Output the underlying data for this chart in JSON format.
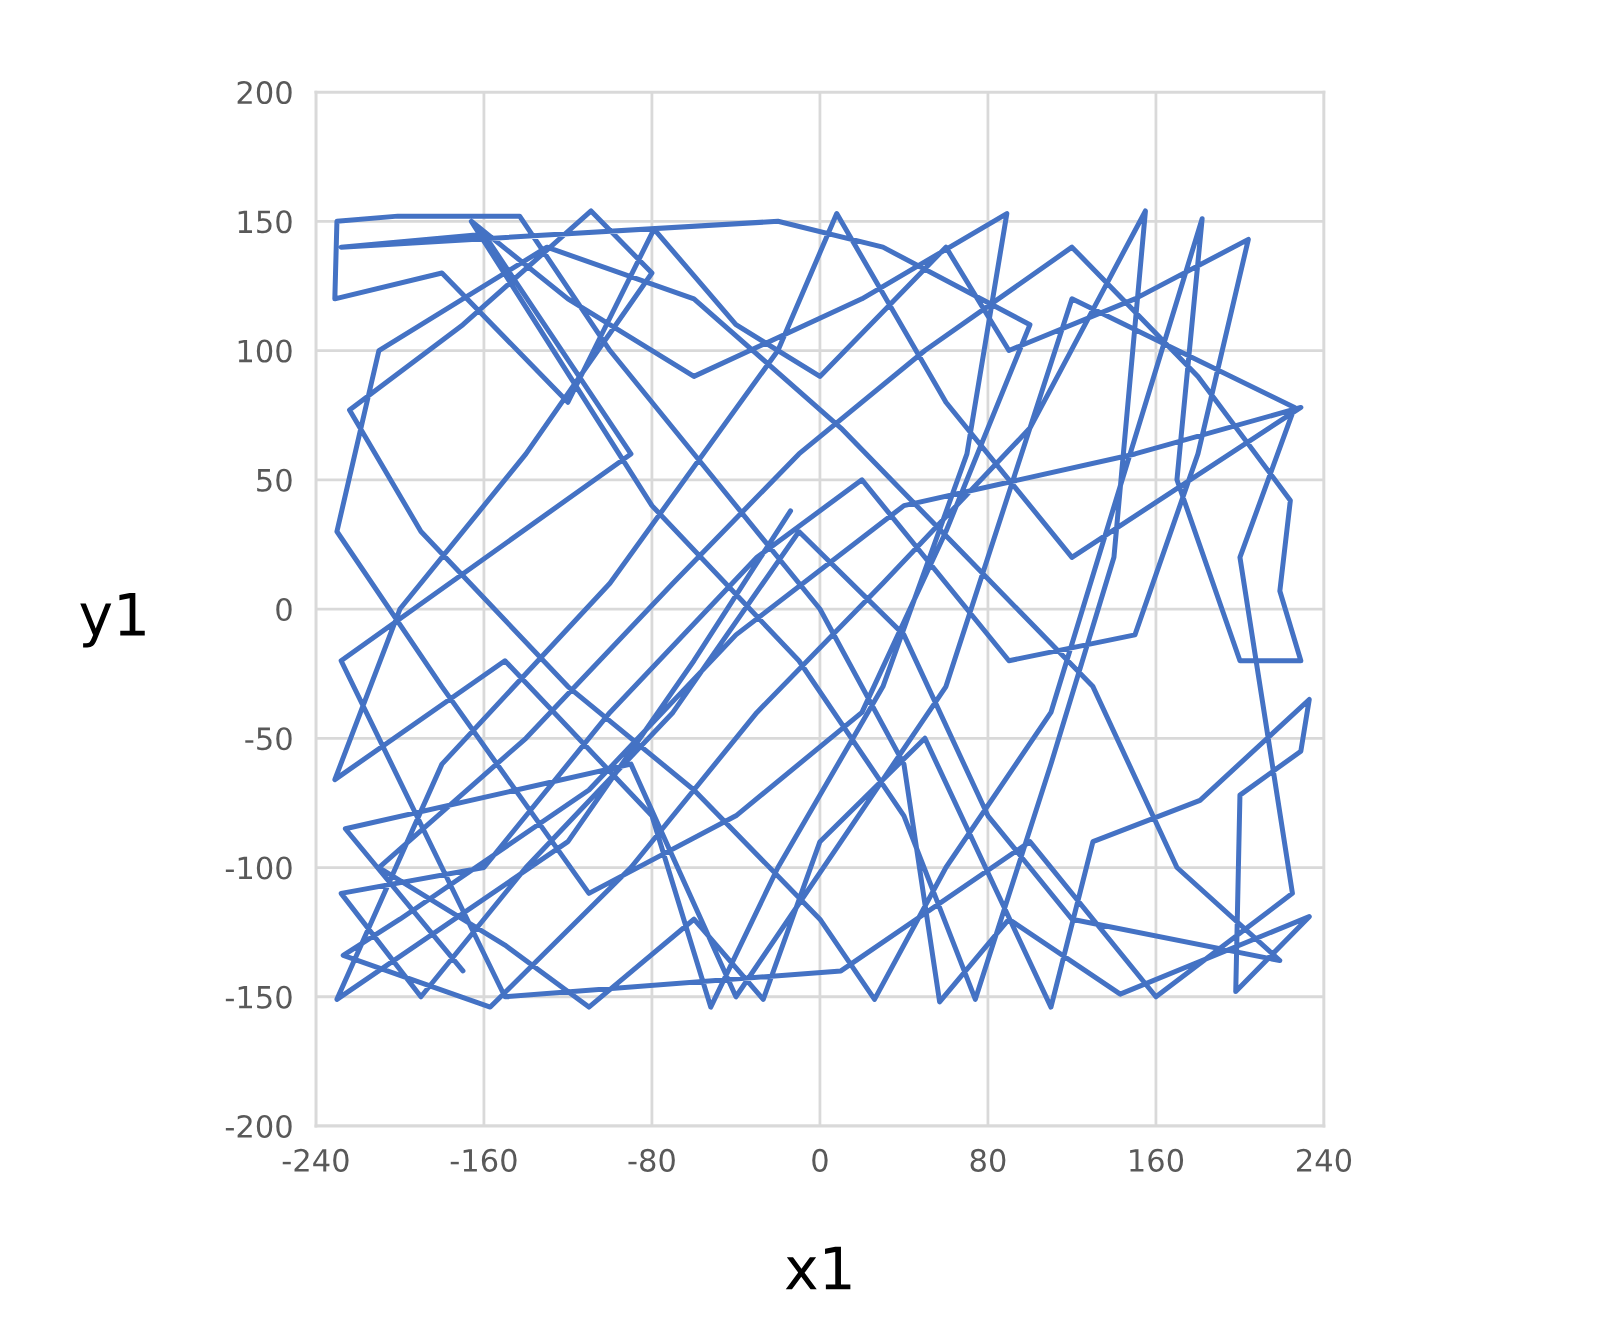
{
  "chart_data": {
    "type": "line",
    "xlabel": "x1",
    "ylabel": "y1",
    "x": [
      -14,
      -60,
      -120,
      -230,
      -180,
      -100,
      -20,
      8,
      60,
      120,
      229,
      150,
      40,
      -40,
      -110,
      -200,
      -227,
      -157,
      -90,
      -30,
      30,
      100,
      155,
      140,
      110,
      74,
      40,
      -10,
      -80,
      -166,
      -120,
      -60,
      20,
      89,
      70,
      30,
      -20,
      -52,
      -80,
      -150,
      -231,
      -200,
      -140,
      -80,
      -109,
      -170,
      -224,
      -190,
      -120,
      -60,
      0,
      26,
      60,
      110,
      182,
      170,
      200,
      229,
      219,
      224,
      180,
      120,
      50,
      -10,
      -70,
      -140,
      -210,
      -150,
      -110,
      -60,
      -27,
      0,
      50,
      110,
      130,
      181,
      233,
      229,
      200,
      198,
      233,
      143,
      90,
      57,
      40,
      0,
      -50,
      -100,
      -143,
      -201,
      -230,
      -231,
      -180,
      -120,
      -79,
      -40,
      0,
      60,
      90,
      150,
      204,
      180,
      150,
      90,
      20,
      -30,
      -100,
      -160,
      -228,
      -190,
      -140,
      -70,
      -10,
      40,
      80,
      120,
      219,
      170,
      130,
      70,
      10,
      -60,
      -130,
      -210,
      -230,
      -180,
      -110,
      -40,
      20,
      60,
      100,
      30,
      -20,
      -228,
      -160,
      -90,
      -228,
      -150,
      10,
      100,
      160,
      225,
      200,
      226,
      120,
      60,
      -40,
      -90,
      -226,
      -170
    ],
    "series": [
      {
        "color": "#4472c4",
        "values": [
          38,
          -20,
          -90,
          -151,
          -60,
          10,
          100,
          153,
          80,
          20,
          78,
          60,
          40,
          -10,
          -70,
          -120,
          -134,
          -154,
          -100,
          -40,
          10,
          70,
          154,
          20,
          -60,
          -151,
          -80,
          -20,
          40,
          150,
          120,
          90,
          120,
          153,
          60,
          -30,
          -100,
          -154,
          -80,
          -20,
          -66,
          0,
          60,
          130,
          154,
          110,
          77,
          30,
          -30,
          -70,
          -120,
          -151,
          -100,
          -40,
          151,
          50,
          -20,
          -20,
          7,
          42,
          90,
          140,
          100,
          60,
          10,
          -50,
          -100,
          -130,
          -154,
          -120,
          -151,
          -90,
          -50,
          -154,
          -90,
          -74,
          -35,
          -55,
          -72,
          -148,
          -119,
          -149,
          -120,
          -152,
          -60,
          0,
          50,
          100,
          152,
          152,
          150,
          120,
          130,
          80,
          147,
          110,
          90,
          140,
          100,
          120,
          143,
          60,
          -10,
          -20,
          50,
          20,
          -40,
          -100,
          -110,
          -150,
          -100,
          -40,
          30,
          -10,
          -80,
          -120,
          -136,
          -100,
          -30,
          20,
          70,
          120,
          140,
          100,
          30,
          -30,
          -110,
          -80,
          -40,
          30,
          110,
          140,
          150,
          140,
          145,
          60,
          -20,
          -150,
          -140,
          -90,
          -150,
          -110,
          20,
          78,
          120,
          -30,
          -150,
          -60,
          -85,
          -140
        ]
      }
    ],
    "xlim": [
      -240,
      240
    ],
    "ylim": [
      -200,
      200
    ],
    "xticks": [
      -240,
      -160,
      -80,
      0,
      80,
      160,
      240
    ],
    "yticks": [
      -200,
      -150,
      -100,
      -50,
      0,
      50,
      100,
      150,
      200
    ],
    "grid": true
  }
}
